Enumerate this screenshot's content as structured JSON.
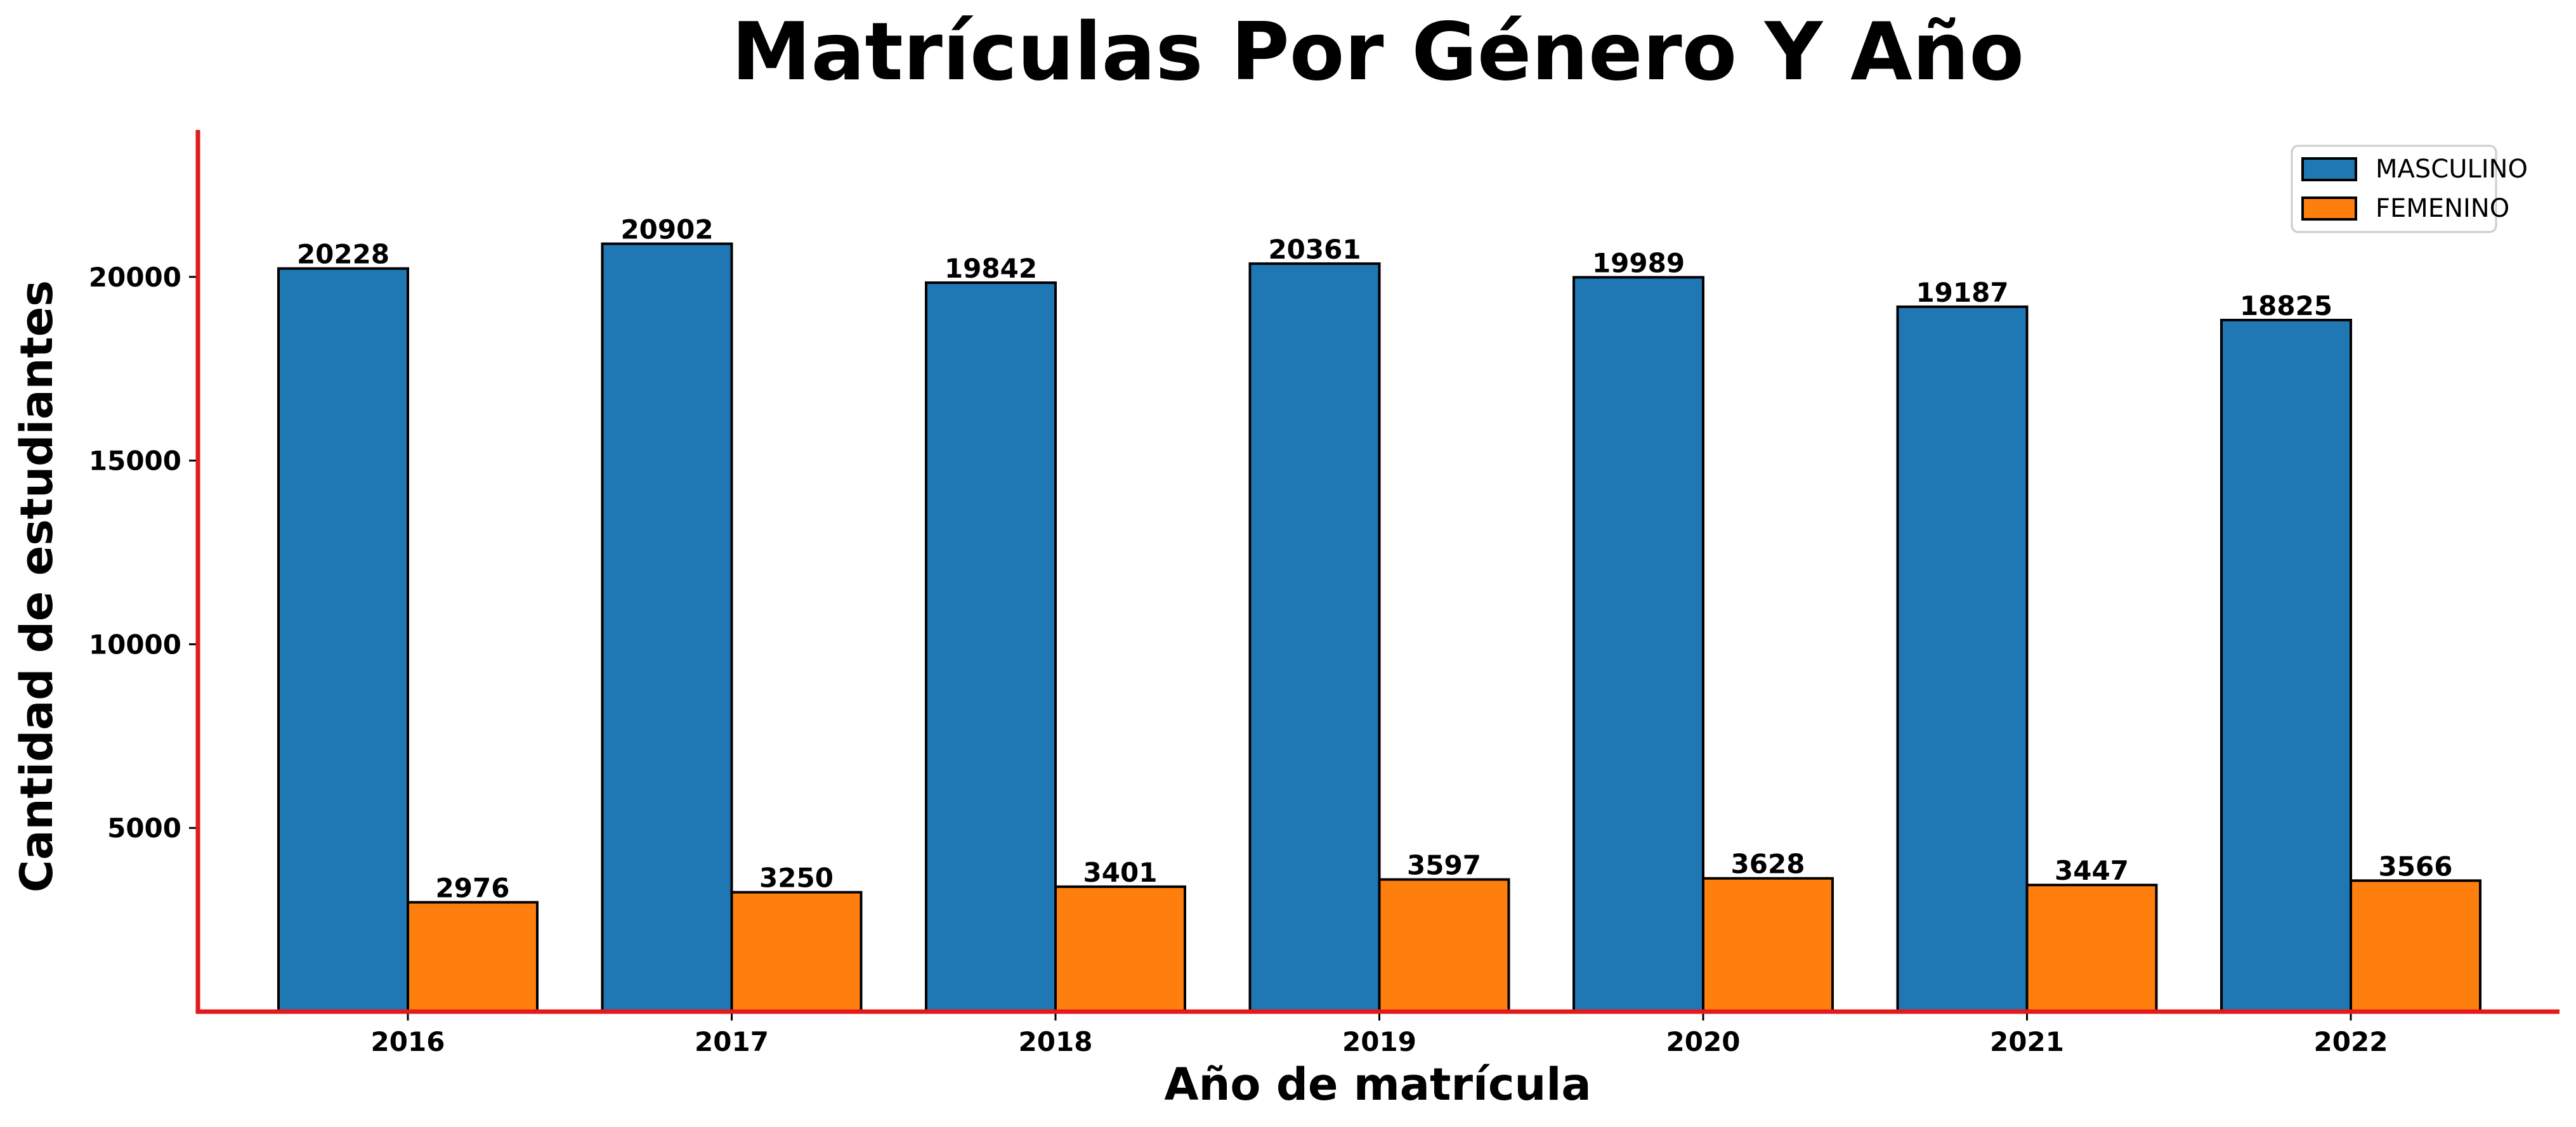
{
  "chart_data": {
    "type": "bar",
    "title": "Matrículas Por Género Y Año",
    "xlabel": "Año de matrícula",
    "ylabel": "Cantidad de estudiantes",
    "categories": [
      "2016",
      "2017",
      "2018",
      "2019",
      "2020",
      "2021",
      "2022"
    ],
    "series": [
      {
        "name": "MASCULINO",
        "color": "#1f77b4",
        "values": [
          20228,
          20902,
          19842,
          20361,
          19989,
          19187,
          18825
        ]
      },
      {
        "name": "FEMENINO",
        "color": "#ff7f0e",
        "values": [
          2976,
          3250,
          3401,
          3597,
          3628,
          3447,
          3566
        ]
      }
    ],
    "ylim": [
      0,
      24000
    ],
    "yticks": [
      5000,
      10000,
      15000,
      20000
    ],
    "grid": false,
    "legend_position": "top-right",
    "axis_color": "#e31a1c",
    "bar_edge_color": "#000000"
  }
}
